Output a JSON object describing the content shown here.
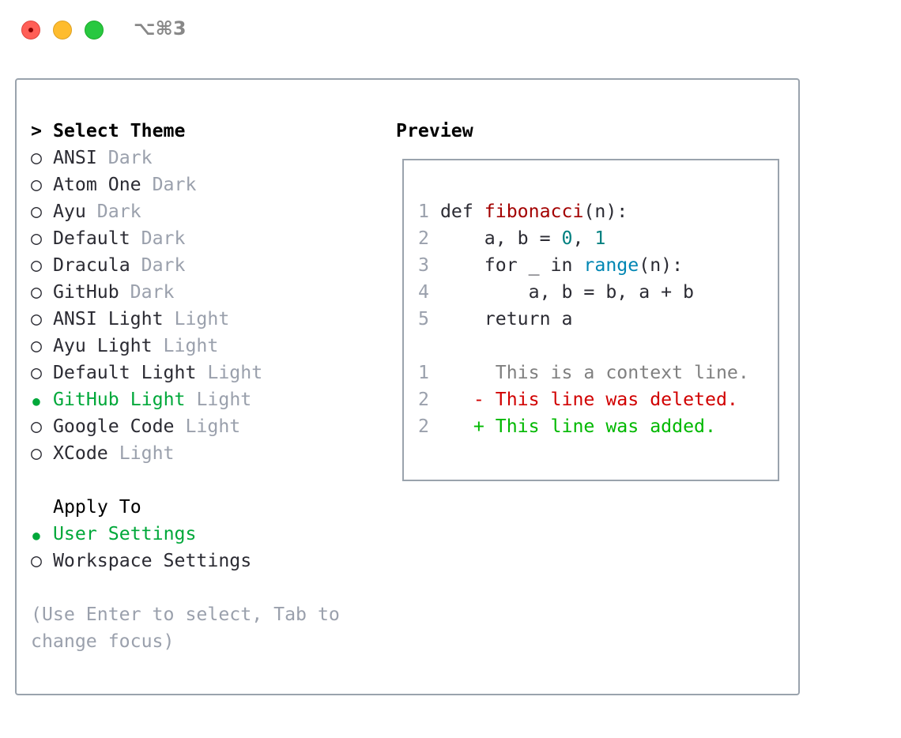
{
  "window": {
    "title": "⌥⌘3",
    "controls": [
      "close",
      "minimize",
      "maximize"
    ]
  },
  "theme_list": {
    "heading": "Select Theme",
    "cursor": ">",
    "items": [
      {
        "name": "ANSI",
        "variant": "Dark",
        "selected": false
      },
      {
        "name": "Atom One",
        "variant": "Dark",
        "selected": false
      },
      {
        "name": "Ayu",
        "variant": "Dark",
        "selected": false
      },
      {
        "name": "Default",
        "variant": "Dark",
        "selected": false
      },
      {
        "name": "Dracula",
        "variant": "Dark",
        "selected": false
      },
      {
        "name": "GitHub",
        "variant": "Dark",
        "selected": false
      },
      {
        "name": "ANSI Light",
        "variant": "Light",
        "selected": false
      },
      {
        "name": "Ayu Light",
        "variant": "Light",
        "selected": false
      },
      {
        "name": "Default Light",
        "variant": "Light",
        "selected": false
      },
      {
        "name": "GitHub Light",
        "variant": "Light",
        "selected": true
      },
      {
        "name": "Google Code",
        "variant": "Light",
        "selected": false
      },
      {
        "name": "XCode",
        "variant": "Light",
        "selected": false
      }
    ]
  },
  "apply_to": {
    "heading": "Apply To",
    "items": [
      {
        "name": "User Settings",
        "selected": true
      },
      {
        "name": "Workspace Settings",
        "selected": false
      }
    ]
  },
  "help": {
    "line1": "(Use Enter to select, Tab to",
    "line2": "change focus)"
  },
  "preview": {
    "title": "Preview",
    "code": [
      {
        "n": "1",
        "kw": "def ",
        "fn": "fibonacci",
        "rest": "(n):"
      },
      {
        "n": "2",
        "pre": "    a, b = ",
        "num1": "0",
        ", ": ", ",
        "num2": "1"
      },
      {
        "n": "3",
        "pre": "    for _ in ",
        "bi": "range",
        "rest": "(n):"
      },
      {
        "n": "4",
        "text": "        a, b = b, a + b"
      },
      {
        "n": "5",
        "text": "    return a"
      }
    ],
    "diff": [
      {
        "n": "1",
        "marker": " ",
        "text": "This is a context line."
      },
      {
        "n": "2",
        "marker": "-",
        "text": "This line was deleted."
      },
      {
        "n": "2",
        "marker": "+",
        "text": "This line was added."
      }
    ]
  },
  "colors": {
    "selected": "#00a83a",
    "dim": "#9aa0ac",
    "function": "#a30000",
    "number": "#008080",
    "builtin": "#0086b3",
    "deleted": "#d10000",
    "added": "#00b800"
  }
}
